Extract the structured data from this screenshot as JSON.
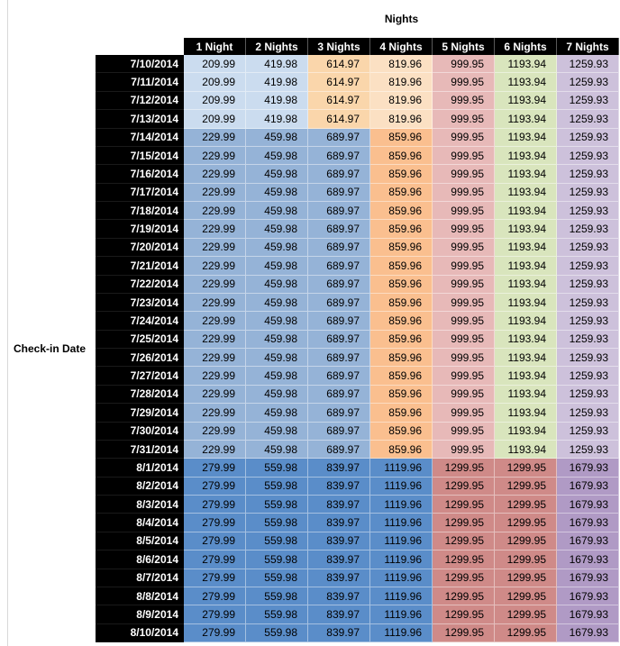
{
  "colors": {
    "header_bg": "#000000",
    "header_text": "#ffffff",
    "value_text": "#000000",
    "title_text": "#000000"
  },
  "chart_data": {
    "type": "table",
    "title": "Nights",
    "row_axis_label": "Check-in Date",
    "columns": [
      "1 Night",
      "2 Nights",
      "3 Nights",
      "4 Nights",
      "5 Nights",
      "6 Nights",
      "7 Nights"
    ],
    "group_colors": {
      "g1": [
        "#CBDCEF",
        "#CBDCEF",
        "#FAD6AB",
        "#FBE0C3",
        "#E7B9B8",
        "#D9E5BD",
        "#CDC1DB"
      ],
      "g2": [
        "#95B3D7",
        "#95B3D7",
        "#95B3D7",
        "#FABF8F",
        "#E7B9B8",
        "#D9E5BD",
        "#CDC1DB"
      ],
      "g3": [
        "#5A8DC9",
        "#5A8DC9",
        "#5A8DC9",
        "#5A8DC9",
        "#CF8A88",
        "#CF8A88",
        "#B09AC5"
      ]
    },
    "rows": [
      {
        "date": "7/10/2014",
        "group": "g1",
        "values": [
          209.99,
          419.98,
          614.97,
          819.96,
          999.95,
          1193.94,
          1259.93
        ]
      },
      {
        "date": "7/11/2014",
        "group": "g1",
        "values": [
          209.99,
          419.98,
          614.97,
          819.96,
          999.95,
          1193.94,
          1259.93
        ]
      },
      {
        "date": "7/12/2014",
        "group": "g1",
        "values": [
          209.99,
          419.98,
          614.97,
          819.96,
          999.95,
          1193.94,
          1259.93
        ]
      },
      {
        "date": "7/13/2014",
        "group": "g1",
        "values": [
          209.99,
          419.98,
          614.97,
          819.96,
          999.95,
          1193.94,
          1259.93
        ]
      },
      {
        "date": "7/14/2014",
        "group": "g2",
        "values": [
          229.99,
          459.98,
          689.97,
          859.96,
          999.95,
          1193.94,
          1259.93
        ]
      },
      {
        "date": "7/15/2014",
        "group": "g2",
        "values": [
          229.99,
          459.98,
          689.97,
          859.96,
          999.95,
          1193.94,
          1259.93
        ]
      },
      {
        "date": "7/16/2014",
        "group": "g2",
        "values": [
          229.99,
          459.98,
          689.97,
          859.96,
          999.95,
          1193.94,
          1259.93
        ]
      },
      {
        "date": "7/17/2014",
        "group": "g2",
        "values": [
          229.99,
          459.98,
          689.97,
          859.96,
          999.95,
          1193.94,
          1259.93
        ]
      },
      {
        "date": "7/18/2014",
        "group": "g2",
        "values": [
          229.99,
          459.98,
          689.97,
          859.96,
          999.95,
          1193.94,
          1259.93
        ]
      },
      {
        "date": "7/19/2014",
        "group": "g2",
        "values": [
          229.99,
          459.98,
          689.97,
          859.96,
          999.95,
          1193.94,
          1259.93
        ]
      },
      {
        "date": "7/20/2014",
        "group": "g2",
        "values": [
          229.99,
          459.98,
          689.97,
          859.96,
          999.95,
          1193.94,
          1259.93
        ]
      },
      {
        "date": "7/21/2014",
        "group": "g2",
        "values": [
          229.99,
          459.98,
          689.97,
          859.96,
          999.95,
          1193.94,
          1259.93
        ]
      },
      {
        "date": "7/22/2014",
        "group": "g2",
        "values": [
          229.99,
          459.98,
          689.97,
          859.96,
          999.95,
          1193.94,
          1259.93
        ]
      },
      {
        "date": "7/23/2014",
        "group": "g2",
        "values": [
          229.99,
          459.98,
          689.97,
          859.96,
          999.95,
          1193.94,
          1259.93
        ]
      },
      {
        "date": "7/24/2014",
        "group": "g2",
        "values": [
          229.99,
          459.98,
          689.97,
          859.96,
          999.95,
          1193.94,
          1259.93
        ]
      },
      {
        "date": "7/25/2014",
        "group": "g2",
        "values": [
          229.99,
          459.98,
          689.97,
          859.96,
          999.95,
          1193.94,
          1259.93
        ]
      },
      {
        "date": "7/26/2014",
        "group": "g2",
        "values": [
          229.99,
          459.98,
          689.97,
          859.96,
          999.95,
          1193.94,
          1259.93
        ]
      },
      {
        "date": "7/27/2014",
        "group": "g2",
        "values": [
          229.99,
          459.98,
          689.97,
          859.96,
          999.95,
          1193.94,
          1259.93
        ]
      },
      {
        "date": "7/28/2014",
        "group": "g2",
        "values": [
          229.99,
          459.98,
          689.97,
          859.96,
          999.95,
          1193.94,
          1259.93
        ]
      },
      {
        "date": "7/29/2014",
        "group": "g2",
        "values": [
          229.99,
          459.98,
          689.97,
          859.96,
          999.95,
          1193.94,
          1259.93
        ]
      },
      {
        "date": "7/30/2014",
        "group": "g2",
        "values": [
          229.99,
          459.98,
          689.97,
          859.96,
          999.95,
          1193.94,
          1259.93
        ]
      },
      {
        "date": "7/31/2014",
        "group": "g2",
        "values": [
          229.99,
          459.98,
          689.97,
          859.96,
          999.95,
          1193.94,
          1259.93
        ]
      },
      {
        "date": "8/1/2014",
        "group": "g3",
        "values": [
          279.99,
          559.98,
          839.97,
          1119.96,
          1299.95,
          1299.95,
          1679.93
        ]
      },
      {
        "date": "8/2/2014",
        "group": "g3",
        "values": [
          279.99,
          559.98,
          839.97,
          1119.96,
          1299.95,
          1299.95,
          1679.93
        ]
      },
      {
        "date": "8/3/2014",
        "group": "g3",
        "values": [
          279.99,
          559.98,
          839.97,
          1119.96,
          1299.95,
          1299.95,
          1679.93
        ]
      },
      {
        "date": "8/4/2014",
        "group": "g3",
        "values": [
          279.99,
          559.98,
          839.97,
          1119.96,
          1299.95,
          1299.95,
          1679.93
        ]
      },
      {
        "date": "8/5/2014",
        "group": "g3",
        "values": [
          279.99,
          559.98,
          839.97,
          1119.96,
          1299.95,
          1299.95,
          1679.93
        ]
      },
      {
        "date": "8/6/2014",
        "group": "g3",
        "values": [
          279.99,
          559.98,
          839.97,
          1119.96,
          1299.95,
          1299.95,
          1679.93
        ]
      },
      {
        "date": "8/7/2014",
        "group": "g3",
        "values": [
          279.99,
          559.98,
          839.97,
          1119.96,
          1299.95,
          1299.95,
          1679.93
        ]
      },
      {
        "date": "8/8/2014",
        "group": "g3",
        "values": [
          279.99,
          559.98,
          839.97,
          1119.96,
          1299.95,
          1299.95,
          1679.93
        ]
      },
      {
        "date": "8/9/2014",
        "group": "g3",
        "values": [
          279.99,
          559.98,
          839.97,
          1119.96,
          1299.95,
          1299.95,
          1679.93
        ]
      },
      {
        "date": "8/10/2014",
        "group": "g3",
        "values": [
          279.99,
          559.98,
          839.97,
          1119.96,
          1299.95,
          1299.95,
          1679.93
        ]
      }
    ]
  }
}
